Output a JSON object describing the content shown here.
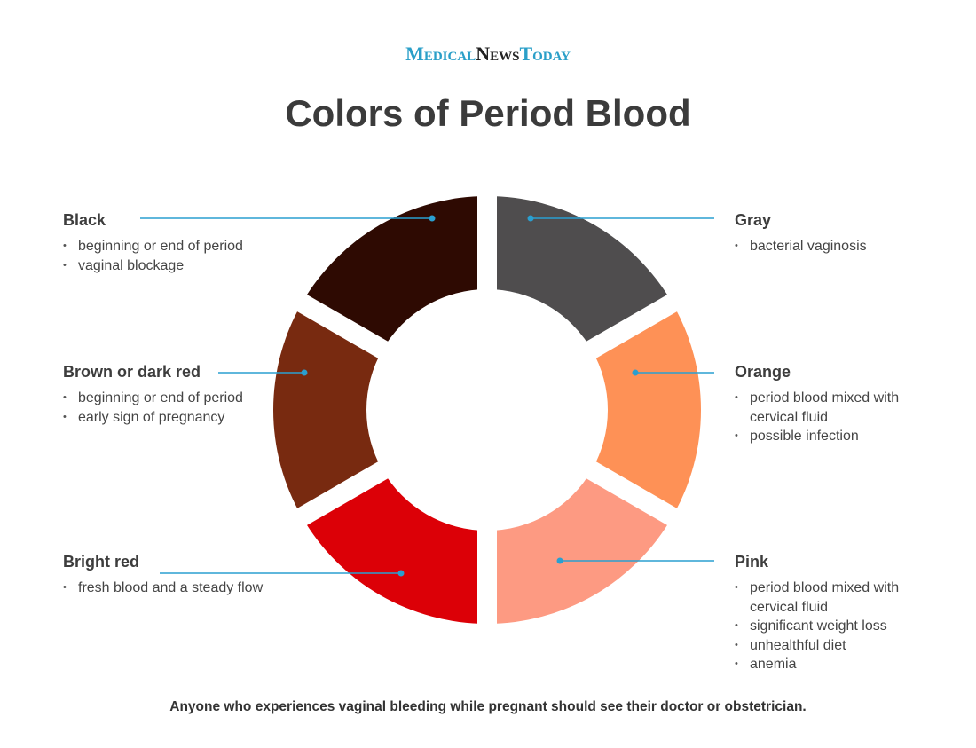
{
  "logo": {
    "part1": "Medical",
    "part2": "News",
    "part3": "Today"
  },
  "title": "Colors of Period Blood",
  "accent_color": "#2a9fd0",
  "segments": [
    {
      "name": "Gray",
      "color": "#4f4d4e",
      "items": [
        "bacterial vaginosis"
      ]
    },
    {
      "name": "Orange",
      "color": "#fe9156",
      "items": [
        "period blood mixed with cervical fluid",
        "possible infection"
      ]
    },
    {
      "name": "Pink",
      "color": "#fd9a82",
      "items": [
        "period blood mixed with cervical fluid",
        "significant weight loss",
        "unhealthful diet",
        "anemia"
      ]
    },
    {
      "name": "Bright red",
      "color": "#dc0007",
      "items": [
        "fresh blood and a steady flow"
      ]
    },
    {
      "name": "Brown or dark red",
      "color": "#782a10",
      "items": [
        "beginning or end of period",
        "early sign of pregnancy"
      ]
    },
    {
      "name": "Black",
      "color": "#2e0a02",
      "items": [
        "beginning or end of period",
        "vaginal blockage"
      ]
    }
  ],
  "footer": "Anyone who experiences vaginal bleeding while pregnant should see their doctor or obstetrician."
}
